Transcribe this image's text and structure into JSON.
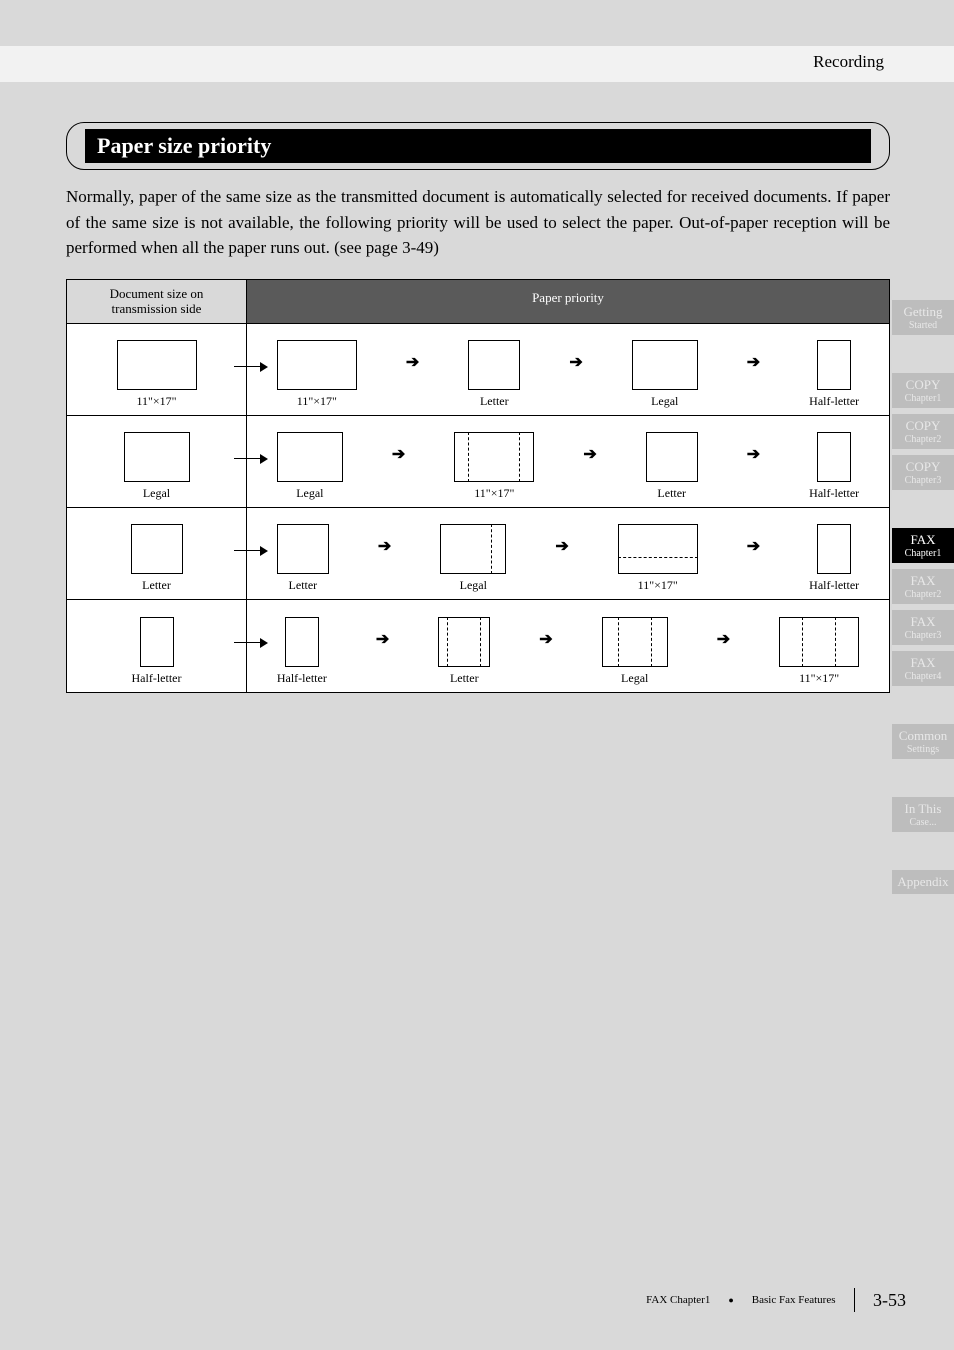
{
  "header": {
    "breadcrumb": "Recording"
  },
  "section": {
    "title": "Paper size priority",
    "body": "Normally, paper of the same size as the transmitted document is automatically selected for received documents. If paper of the same size is not available, the following priority will be used to select the paper. Out-of-paper reception will be performed when all the paper runs out. (see page 3-49)"
  },
  "diagram": {
    "header_left": "Document size on\ntransmission side",
    "header_right": "Paper priority",
    "rows": [
      {
        "source": "11\"×17\"",
        "priority": [
          "11\"×17\"",
          "Letter",
          "Legal",
          "Half-letter"
        ]
      },
      {
        "source": "Legal",
        "priority": [
          "Legal",
          "11\"×17\"",
          "Letter",
          "Half-letter"
        ]
      },
      {
        "source": "Letter",
        "priority": [
          "Letter",
          "Legal",
          "11\"×17\"",
          "Half-letter"
        ]
      },
      {
        "source": "Half-letter",
        "priority": [
          "Half-letter",
          "Letter",
          "Legal",
          "11\"×17\""
        ]
      }
    ],
    "shape_class": {
      "11\"×17\"": "p-11x17",
      "Legal": "p-legal",
      "Letter": "p-letter",
      "Half-letter": "p-halfletter"
    },
    "overlays": {
      "1": {
        "1": "letter-in-11x17"
      },
      "2": {
        "1": "letter-in-legal",
        "2": "letter-in-11x17-top"
      },
      "3": {
        "1": "half-in-letter",
        "2": "half-in-legal",
        "3": "half-in-11x17"
      }
    }
  },
  "tabs": [
    {
      "line1": "Getting",
      "line2": "Started",
      "active": false
    },
    {
      "gap": true
    },
    {
      "line1": "COPY",
      "line2": "Chapter1",
      "active": false
    },
    {
      "line1": "COPY",
      "line2": "Chapter2",
      "active": false
    },
    {
      "line1": "COPY",
      "line2": "Chapter3",
      "active": false
    },
    {
      "gap": true
    },
    {
      "line1": "FAX",
      "line2": "Chapter1",
      "active": true
    },
    {
      "line1": "FAX",
      "line2": "Chapter2",
      "active": false
    },
    {
      "line1": "FAX",
      "line2": "Chapter3",
      "active": false
    },
    {
      "line1": "FAX",
      "line2": "Chapter4",
      "active": false
    },
    {
      "gap": true
    },
    {
      "line1": "Common",
      "line2": "Settings",
      "active": false
    },
    {
      "gap": true
    },
    {
      "line1": "In This",
      "line2": "Case...",
      "active": false
    },
    {
      "gap": true
    },
    {
      "line1": "Appendix",
      "line2": "",
      "active": false
    }
  ],
  "footer": {
    "chapter": "FAX Chapter1",
    "section": "Basic Fax Features",
    "page": "3-53"
  }
}
